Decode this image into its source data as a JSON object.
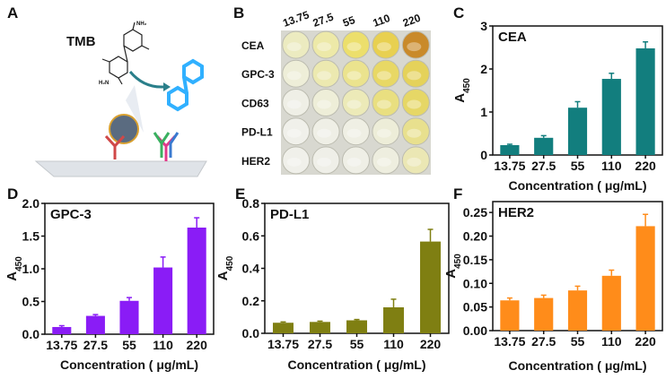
{
  "panels": {
    "a": {
      "letter": "A",
      "tmb_label": "TMB",
      "nh2": "NH₂",
      "h2n": "H₂N"
    },
    "b": {
      "letter": "B",
      "columns": [
        "13.75",
        "27.5",
        "55",
        "110",
        "220"
      ],
      "rows": [
        "CEA",
        "GPC-3",
        "CD63",
        "PD-L1",
        "HER2"
      ],
      "well_colors": [
        [
          "#ecebc0",
          "#ede9a8",
          "#ecdf6c",
          "#e8d050",
          "#c98a2a"
        ],
        [
          "#eeeed8",
          "#ece9b0",
          "#ebe38e",
          "#e8d865",
          "#e5d25a"
        ],
        [
          "#efefe6",
          "#eeeed8",
          "#eceab8",
          "#e9df80",
          "#e6d766"
        ],
        [
          "#f0f0ea",
          "#efefe6",
          "#efefe4",
          "#ededd8",
          "#e8e08e"
        ],
        [
          "#f0f0ea",
          "#efefe8",
          "#efefe6",
          "#eeeedf",
          "#ebe7b4"
        ]
      ]
    }
  },
  "chart_data": [
    {
      "id": "c",
      "letter": "C",
      "type": "bar",
      "title": "CEA",
      "color": "#127e7e",
      "categories": [
        "13.75",
        "27.5",
        "55",
        "110",
        "220"
      ],
      "values": [
        0.23,
        0.4,
        1.1,
        1.77,
        2.48
      ],
      "errors": [
        0.02,
        0.05,
        0.14,
        0.13,
        0.15
      ],
      "ylim": [
        0,
        3
      ],
      "yticks": [
        "0",
        "1",
        "2",
        "3"
      ],
      "ytick_values": [
        0,
        1,
        2,
        3
      ],
      "xlabel": "Concentration ( μg/mL)",
      "ylabel_main": "A",
      "ylabel_sub": "450"
    },
    {
      "id": "d",
      "letter": "D",
      "type": "bar",
      "title": "GPC-3",
      "color": "#8a1cf6",
      "categories": [
        "13.75",
        "27.5",
        "55",
        "110",
        "220"
      ],
      "values": [
        0.11,
        0.28,
        0.51,
        1.02,
        1.63
      ],
      "errors": [
        0.02,
        0.02,
        0.05,
        0.16,
        0.15
      ],
      "ylim": [
        0,
        2
      ],
      "yticks": [
        "0.0",
        "0.5",
        "1.0",
        "1.5",
        "2.0"
      ],
      "ytick_values": [
        0,
        0.5,
        1,
        1.5,
        2
      ],
      "xlabel": "Concentration ( μg/mL)",
      "ylabel_main": "A",
      "ylabel_sub": "450"
    },
    {
      "id": "e",
      "letter": "E",
      "type": "bar",
      "title": "PD-L1",
      "color": "#7f7f12",
      "categories": [
        "13.75",
        "27.5",
        "55",
        "110",
        "220"
      ],
      "values": [
        0.065,
        0.07,
        0.08,
        0.16,
        0.565
      ],
      "errors": [
        0.005,
        0.005,
        0.005,
        0.05,
        0.075
      ],
      "ylim": [
        0,
        0.8
      ],
      "yticks": [
        "0.0",
        "0.2",
        "0.4",
        "0.6",
        "0.8"
      ],
      "ytick_values": [
        0,
        0.2,
        0.4,
        0.6,
        0.8
      ],
      "xlabel": "Concentration ( μg/mL)",
      "ylabel_main": "A",
      "ylabel_sub": "450"
    },
    {
      "id": "f",
      "letter": "F",
      "type": "bar",
      "title": "HER2",
      "color": "#ff8c1a",
      "categories": [
        "13.75",
        "27.5",
        "55",
        "110",
        "220"
      ],
      "values": [
        0.064,
        0.069,
        0.085,
        0.116,
        0.221
      ],
      "errors": [
        0.005,
        0.006,
        0.009,
        0.012,
        0.025
      ],
      "ylim": [
        0,
        0.273
      ],
      "yticks": [
        "0.00",
        "0.05",
        "0.10",
        "0.15",
        "0.20",
        "0.25"
      ],
      "ytick_values": [
        0,
        0.05,
        0.1,
        0.15,
        0.2,
        0.25
      ],
      "xlabel": "Concentration ( μg/mL)",
      "ylabel_main": "A",
      "ylabel_sub": "450"
    }
  ]
}
